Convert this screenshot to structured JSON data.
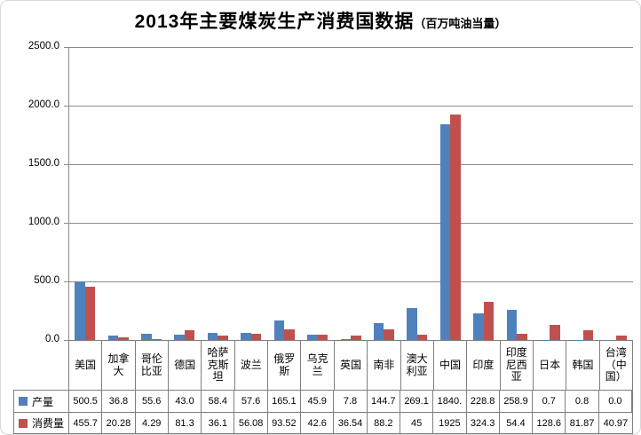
{
  "title": {
    "main": "2013年主要煤炭生产消费国数据",
    "unit": "（百万吨油当量）"
  },
  "colors": {
    "production_blue": "#4F81BD",
    "consumption_red": "#C0504D",
    "grid_gray": "#8C8C8C",
    "table_border_gray": "#7F7F7F"
  },
  "chart_data": {
    "type": "bar",
    "title": "2013年主要煤炭生产消费国数据（百万吨油当量）",
    "xlabel": "",
    "ylabel": "",
    "grid": true,
    "legend_position": "data-table-left",
    "ylim": [
      0,
      2500
    ],
    "yaxis": {
      "min": 0,
      "max": 2500,
      "step": 500,
      "ticks": [
        "0.0",
        "500.0",
        "1000.0",
        "1500.0",
        "2000.0",
        "2500.0"
      ]
    },
    "categories": [
      "美国",
      "加拿大",
      "哥伦比亚",
      "德国",
      "哈萨克斯坦",
      "波兰",
      "俄罗斯",
      "乌克兰",
      "英国",
      "南非",
      "澳大利亚",
      "中国",
      "印度",
      "印度尼西亚",
      "日本",
      "韩国",
      "台湾（中国）"
    ],
    "series": [
      {
        "name": "产量",
        "color": "#4F81BD",
        "values": [
          500.5,
          36.8,
          55.6,
          43.0,
          58.4,
          57.6,
          165.1,
          45.9,
          7.8,
          144.7,
          269.1,
          1840,
          228.8,
          258.9,
          0.7,
          0.8,
          0.0
        ],
        "display": [
          "500.5",
          "36.8",
          "55.6",
          "43.0",
          "58.4",
          "57.6",
          "165.1",
          "45.9",
          "7.8",
          "144.7",
          "269.1",
          "1840.",
          "228.8",
          "258.9",
          "0.7",
          "0.8",
          "0.0"
        ]
      },
      {
        "name": "消费量",
        "color": "#C0504D",
        "values": [
          455.7,
          20.28,
          4.29,
          81.3,
          36.1,
          56.08,
          93.52,
          42.6,
          36.54,
          88.2,
          45,
          1925,
          324.3,
          54.4,
          128.6,
          81.87,
          40.97
        ],
        "display": [
          "455.7",
          "20.28",
          "4.29",
          "81.3",
          "36.1",
          "56.08",
          "93.52",
          "42.6",
          "36.54",
          "88.2",
          "45",
          "1925",
          "324.3",
          "54.4",
          "128.6",
          "81.87",
          "40.97"
        ]
      }
    ]
  }
}
